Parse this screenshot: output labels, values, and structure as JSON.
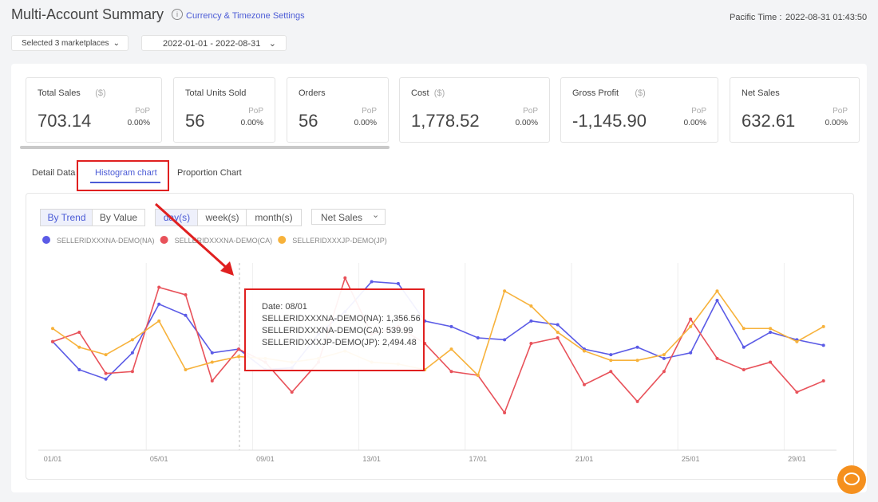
{
  "header": {
    "title": "Multi-Account Summary",
    "settings_link": "Currency & Timezone Settings",
    "time_label": "Pacific Time :",
    "time": "2022-08-31 01:43:50"
  },
  "filters": {
    "marketplaces": "Selected 3 marketplaces",
    "date_range": "2022-01-01 - 2022-08-31"
  },
  "kpis": [
    {
      "label": "Total Sales",
      "unit": "($)",
      "value": "703.14",
      "pop_label": "PoP",
      "pop": "0.00%"
    },
    {
      "label": "Total Units Sold",
      "value": "56",
      "pop_label": "PoP",
      "pop": "0.00%"
    },
    {
      "label": "Orders",
      "value": "56",
      "pop_label": "PoP",
      "pop": "0.00%"
    },
    {
      "label": "Cost",
      "unit": "($)",
      "value": "1,778.52",
      "pop_label": "PoP",
      "pop": "0.00%"
    },
    {
      "label": "Gross Profit",
      "unit": "($)",
      "value": "-1,145.90",
      "pop_label": "PoP",
      "pop": "0.00%"
    },
    {
      "label": "Net Sales",
      "value": "632.61",
      "pop_label": "PoP",
      "pop": "0.00%"
    }
  ],
  "tabs": [
    "Detail Data",
    "Histogram chart",
    "Proportion Chart"
  ],
  "controls": {
    "view_buttons": [
      "By Trend",
      "By Value"
    ],
    "period_buttons": [
      "day(s)",
      "week(s)",
      "month(s)"
    ],
    "metric": "Net Sales"
  },
  "chart_data": {
    "type": "line",
    "categories": [
      "01/01",
      null,
      null,
      null,
      "05/01",
      null,
      null,
      null,
      "09/01",
      null,
      null,
      null,
      "13/01",
      null,
      null,
      null,
      "17/01",
      null,
      null,
      null,
      "21/01",
      null,
      null,
      null,
      "25/01",
      null,
      null,
      null,
      "29/01",
      null
    ],
    "ylim": [
      0,
      100
    ],
    "series": [
      {
        "name": "SELLERIDXXXNA-DEMO(NA)",
        "color": "#5b5be6",
        "values": [
          58,
          43,
          38,
          52,
          78,
          72,
          52,
          54,
          43,
          44,
          62,
          74,
          90,
          89,
          69,
          66,
          60,
          59,
          69,
          67,
          54,
          51,
          55,
          49,
          52,
          80,
          55,
          63,
          59,
          56
        ]
      },
      {
        "name": "SELLERIDXXXNA-DEMO(CA)",
        "color": "#e8525a",
        "values": [
          58,
          63,
          41,
          42,
          87,
          83,
          37,
          54,
          47,
          31,
          47,
          92,
          62,
          66,
          57,
          42,
          40,
          20,
          57,
          60,
          35,
          42,
          26,
          42,
          70,
          49,
          43,
          47,
          31,
          37
        ]
      },
      {
        "name": "SELLERIDXXXJP-DEMO(JP)",
        "color": "#f7b23b",
        "values": [
          65,
          55,
          51,
          59,
          69,
          43,
          47,
          50,
          49,
          47,
          49,
          53,
          47,
          46,
          43,
          54,
          40,
          85,
          77,
          63,
          53,
          48,
          48,
          51,
          66,
          85,
          65,
          65,
          58,
          66
        ]
      }
    ],
    "tooltip": {
      "date": "Date: 08/01",
      "lines": [
        "SELLERIDXXXNA-DEMO(NA): 1,356.56",
        "SELLERIDXXXNA-DEMO(CA): 539.99",
        "SELLERIDXXXJP-DEMO(JP): 2,494.48"
      ]
    }
  }
}
